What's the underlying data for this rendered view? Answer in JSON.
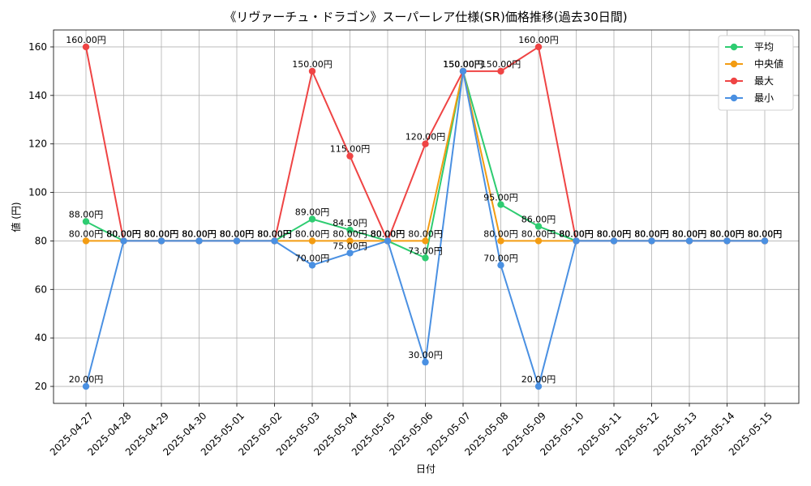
{
  "chart_data": {
    "type": "line",
    "title": "《リヴァーチュ・ドラゴン》スーパーレア仕様(SR)価格推移(過去30日間)",
    "xlabel": "日付",
    "ylabel": "値 (円)",
    "ylim": [
      13,
      167
    ],
    "yticks": [
      20,
      40,
      60,
      80,
      100,
      120,
      140,
      160
    ],
    "grid": true,
    "legend_position": "top-right",
    "label_suffix": "円",
    "categories": [
      "2025-04-27",
      "2025-04-28",
      "2025-04-29",
      "2025-04-30",
      "2025-05-01",
      "2025-05-02",
      "2025-05-03",
      "2025-05-04",
      "2025-05-05",
      "2025-05-06",
      "2025-05-07",
      "2025-05-08",
      "2025-05-09",
      "2025-05-10",
      "2025-05-11",
      "2025-05-12",
      "2025-05-13",
      "2025-05-14",
      "2025-05-15"
    ],
    "series": [
      {
        "name": "平均",
        "color": "#2ecc71",
        "values": [
          88,
          80,
          80,
          80,
          80,
          80,
          89,
          84.5,
          80,
          73,
          150,
          95,
          86,
          80,
          80,
          80,
          80,
          80,
          80
        ]
      },
      {
        "name": "中央値",
        "color": "#f39c12",
        "values": [
          80,
          80,
          80,
          80,
          80,
          80,
          80,
          80,
          80,
          80,
          150,
          80,
          80,
          80,
          80,
          80,
          80,
          80,
          80
        ]
      },
      {
        "name": "最大",
        "color": "#ef4444",
        "values": [
          160,
          80,
          80,
          80,
          80,
          80,
          150,
          115,
          80,
          120,
          150,
          150,
          160,
          80,
          80,
          80,
          80,
          80,
          80
        ]
      },
      {
        "name": "最小",
        "color": "#4a90e2",
        "values": [
          20,
          80,
          80,
          80,
          80,
          80,
          70,
          75,
          80,
          30,
          150,
          70,
          20,
          80,
          80,
          80,
          80,
          80,
          80
        ]
      }
    ]
  }
}
